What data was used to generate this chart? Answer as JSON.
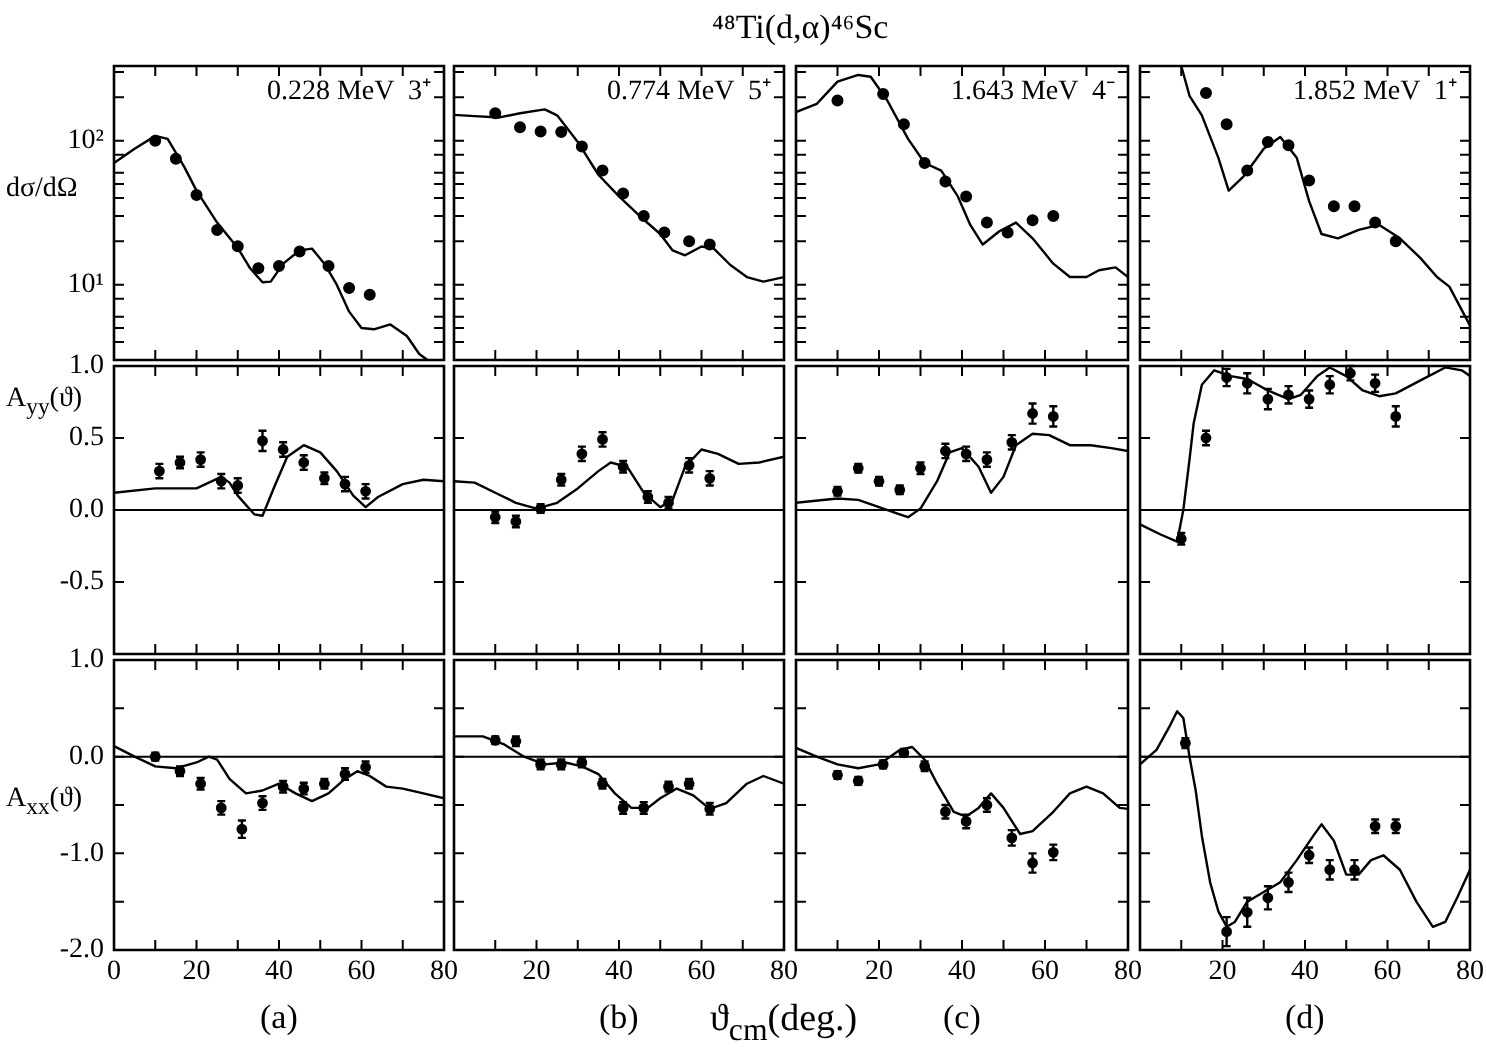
{
  "chart_data": [
    {
      "type": "line",
      "ylabel": "dσ/dΩ",
      "annotations": [
        "0.228 MeV  3⁺"
      ],
      "log": true,
      "tick_labels": "y",
      "xlim": [
        0,
        80
      ],
      "xticks": [
        {
          "value": 0,
          "label": null
        },
        {
          "value": 10,
          "label": null
        },
        {
          "value": 20,
          "label": null
        },
        {
          "value": 30,
          "label": null
        },
        {
          "value": 40,
          "label": null
        },
        {
          "value": 50,
          "label": null
        },
        {
          "value": 60,
          "label": null
        },
        {
          "value": 70,
          "label": null
        },
        {
          "value": 80,
          "label": null
        }
      ],
      "ylim": [
        3,
        330
      ],
      "yticks": [
        {
          "value": 4,
          "label": null
        },
        {
          "value": 5,
          "label": null
        },
        {
          "value": 6,
          "label": null
        },
        {
          "value": 8,
          "label": null
        },
        {
          "value": 10,
          "label": "10¹"
        },
        {
          "value": 20,
          "label": null
        },
        {
          "value": 30,
          "label": null
        },
        {
          "value": 40,
          "label": null
        },
        {
          "value": 50,
          "label": null
        },
        {
          "value": 60,
          "label": null
        },
        {
          "value": 80,
          "label": null
        },
        {
          "value": 100,
          "label": "10²"
        },
        {
          "value": 200,
          "label": null
        },
        {
          "value": 300,
          "label": null
        }
      ],
      "series": [
        {
          "type": "line",
          "color": "#000000",
          "marker": "none",
          "x": [
            0,
            5,
            10,
            13,
            17,
            20,
            25,
            30,
            33,
            36,
            38,
            41,
            45,
            48,
            51,
            54,
            57,
            60,
            63,
            67,
            71,
            74,
            76
          ],
          "values": [
            70,
            88,
            108,
            103,
            66,
            45,
            27,
            18,
            13,
            10.4,
            10.5,
            14,
            17.3,
            17.8,
            14,
            10,
            6.5,
            5.0,
            4.9,
            5.3,
            4.4,
            3.3,
            3.0
          ]
        },
        {
          "type": "scatter",
          "color": "#000000",
          "marker": "circle",
          "x": [
            10,
            15,
            20,
            25,
            30,
            35,
            40,
            45,
            52,
            57,
            62
          ],
          "values": [
            100,
            75,
            42,
            24,
            18.5,
            13,
            13.5,
            17,
            13.5,
            9.5,
            8.5
          ]
        }
      ]
    },
    {
      "type": "line",
      "annotations": [
        "0.774 MeV  5⁺"
      ],
      "log": true,
      "tick_labels": false,
      "xlim": [
        0,
        80
      ],
      "xticks": [
        {
          "value": 0,
          "label": null
        },
        {
          "value": 10,
          "label": null
        },
        {
          "value": 20,
          "label": null
        },
        {
          "value": 30,
          "label": null
        },
        {
          "value": 40,
          "label": null
        },
        {
          "value": 50,
          "label": null
        },
        {
          "value": 60,
          "label": null
        },
        {
          "value": 70,
          "label": null
        },
        {
          "value": 80,
          "label": null
        }
      ],
      "ylim": [
        3,
        330
      ],
      "yticks": [
        {
          "value": 4,
          "label": null
        },
        {
          "value": 5,
          "label": null
        },
        {
          "value": 6,
          "label": null
        },
        {
          "value": 8,
          "label": null
        },
        {
          "value": 10,
          "label": null
        },
        {
          "value": 20,
          "label": null
        },
        {
          "value": 30,
          "label": null
        },
        {
          "value": 40,
          "label": null
        },
        {
          "value": 50,
          "label": null
        },
        {
          "value": 60,
          "label": null
        },
        {
          "value": 80,
          "label": null
        },
        {
          "value": 100,
          "label": null
        },
        {
          "value": 200,
          "label": null
        },
        {
          "value": 300,
          "label": null
        }
      ],
      "series": [
        {
          "type": "line",
          "color": "#000000",
          "marker": "none",
          "x": [
            0,
            5,
            11,
            16,
            22,
            25,
            30,
            35,
            40,
            45,
            50,
            53,
            56,
            60,
            63,
            67,
            71,
            75,
            80
          ],
          "values": [
            151,
            148,
            145,
            155,
            165,
            150,
            98,
            58,
            41,
            30,
            22.5,
            17.3,
            16,
            18.4,
            17.8,
            13.7,
            11.3,
            10.5,
            11.3
          ]
        },
        {
          "type": "scatter",
          "color": "#000000",
          "marker": "circle",
          "x": [
            10,
            16,
            21,
            26,
            31,
            36,
            41,
            46,
            51,
            57,
            62
          ],
          "values": [
            155,
            124,
            116,
            115,
            91,
            62,
            43,
            30,
            23,
            20,
            19
          ]
        }
      ]
    },
    {
      "type": "line",
      "title": "⁴⁸Ti(d,α)⁴⁶Sc",
      "annotations": [
        "1.643 MeV  4⁻"
      ],
      "log": true,
      "tick_labels": false,
      "xlim": [
        0,
        80
      ],
      "xticks": [
        {
          "value": 0,
          "label": null
        },
        {
          "value": 10,
          "label": null
        },
        {
          "value": 20,
          "label": null
        },
        {
          "value": 30,
          "label": null
        },
        {
          "value": 40,
          "label": null
        },
        {
          "value": 50,
          "label": null
        },
        {
          "value": 60,
          "label": null
        },
        {
          "value": 70,
          "label": null
        },
        {
          "value": 80,
          "label": null
        }
      ],
      "ylim": [
        3,
        330
      ],
      "yticks": [
        {
          "value": 4,
          "label": null
        },
        {
          "value": 5,
          "label": null
        },
        {
          "value": 6,
          "label": null
        },
        {
          "value": 8,
          "label": null
        },
        {
          "value": 10,
          "label": null
        },
        {
          "value": 20,
          "label": null
        },
        {
          "value": 30,
          "label": null
        },
        {
          "value": 40,
          "label": null
        },
        {
          "value": 50,
          "label": null
        },
        {
          "value": 60,
          "label": null
        },
        {
          "value": 80,
          "label": null
        },
        {
          "value": 100,
          "label": null
        },
        {
          "value": 200,
          "label": null
        },
        {
          "value": 300,
          "label": null
        }
      ],
      "series": [
        {
          "type": "line",
          "color": "#000000",
          "marker": "none",
          "x": [
            0,
            5,
            10,
            15,
            18,
            22,
            27,
            31,
            35,
            39,
            42,
            45,
            49,
            53,
            57,
            62,
            66,
            70,
            73,
            77,
            80
          ],
          "values": [
            158,
            180,
            257,
            286,
            278,
            190,
            103,
            70,
            62,
            41,
            26,
            19,
            23.5,
            27,
            21,
            14,
            11.3,
            11.3,
            12.6,
            13.2,
            11.3
          ]
        },
        {
          "type": "scatter",
          "color": "#000000",
          "marker": "circle",
          "x": [
            10,
            21,
            26,
            31,
            36,
            41,
            46,
            51,
            57,
            62
          ],
          "values": [
            190,
            211,
            130,
            70,
            52,
            41,
            27,
            23,
            28,
            30
          ]
        }
      ]
    },
    {
      "type": "line",
      "annotations": [
        "1.852 MeV  1⁺"
      ],
      "log": true,
      "tick_labels": false,
      "xlim": [
        0,
        80
      ],
      "xticks": [
        {
          "value": 0,
          "label": null
        },
        {
          "value": 10,
          "label": null
        },
        {
          "value": 20,
          "label": null
        },
        {
          "value": 30,
          "label": null
        },
        {
          "value": 40,
          "label": null
        },
        {
          "value": 50,
          "label": null
        },
        {
          "value": 60,
          "label": null
        },
        {
          "value": 70,
          "label": null
        },
        {
          "value": 80,
          "label": null
        }
      ],
      "ylim": [
        3,
        330
      ],
      "yticks": [
        {
          "value": 4,
          "label": null
        },
        {
          "value": 5,
          "label": null
        },
        {
          "value": 6,
          "label": null
        },
        {
          "value": 8,
          "label": null
        },
        {
          "value": 10,
          "label": null
        },
        {
          "value": 20,
          "label": null
        },
        {
          "value": 30,
          "label": null
        },
        {
          "value": 40,
          "label": null
        },
        {
          "value": 50,
          "label": null
        },
        {
          "value": 60,
          "label": null
        },
        {
          "value": 80,
          "label": null
        },
        {
          "value": 100,
          "label": null
        },
        {
          "value": 200,
          "label": null
        },
        {
          "value": 300,
          "label": null
        }
      ],
      "series": [
        {
          "type": "line",
          "color": "#000000",
          "marker": "none",
          "x": [
            10,
            12,
            15,
            19,
            21.5,
            25,
            30,
            34,
            38,
            41,
            44,
            48,
            53,
            58,
            63,
            68,
            72,
            75,
            80
          ],
          "values": [
            330,
            205,
            150,
            76,
            45,
            56,
            88,
            106,
            76,
            38,
            22.5,
            21,
            24,
            26,
            21,
            15.3,
            11.3,
            9.7,
            5.2
          ]
        },
        {
          "type": "scatter",
          "color": "#000000",
          "marker": "circle",
          "x": [
            16,
            21,
            26,
            31,
            36,
            41,
            47,
            52,
            57,
            62
          ],
          "values": [
            214,
            130,
            62,
            98,
            93,
            53,
            35,
            35,
            27,
            20
          ]
        }
      ]
    },
    {
      "type": "line",
      "ylabel": "A$_{yy}$(ϑ)",
      "tick_labels": "y",
      "xlim": [
        0,
        80
      ],
      "xticks": [
        {
          "value": 0,
          "label": null
        },
        {
          "value": 10,
          "label": null
        },
        {
          "value": 20,
          "label": null
        },
        {
          "value": 30,
          "label": null
        },
        {
          "value": 40,
          "label": null
        },
        {
          "value": 50,
          "label": null
        },
        {
          "value": 60,
          "label": null
        },
        {
          "value": 70,
          "label": null
        },
        {
          "value": 80,
          "label": null
        }
      ],
      "ylim": [
        -1,
        1
      ],
      "yticks": [
        {
          "value": -1,
          "label": null
        },
        {
          "value": -0.5,
          "label": "-0.5"
        },
        {
          "value": 0,
          "label": "0.0"
        },
        {
          "value": 0.5,
          "label": "0.5"
        },
        {
          "value": 1,
          "label": "1.0"
        }
      ],
      "ref_lines": [
        {
          "axis": "y",
          "value": 0
        }
      ],
      "series": [
        {
          "type": "line",
          "color": "#000000",
          "marker": "none",
          "x": [
            0,
            10,
            20,
            23,
            26,
            28,
            30,
            34,
            36,
            39,
            42,
            46,
            50,
            54,
            58,
            61,
            64,
            70,
            75,
            80
          ],
          "values": [
            0.12,
            0.15,
            0.15,
            0.19,
            0.23,
            0.19,
            0.1,
            -0.03,
            -0.04,
            0.17,
            0.37,
            0.45,
            0.4,
            0.27,
            0.1,
            0.02,
            0.09,
            0.18,
            0.21,
            0.2
          ]
        },
        {
          "type": "scatter",
          "color": "#000000",
          "marker": "circle",
          "x": [
            11,
            16,
            21,
            26,
            30,
            36,
            41,
            46,
            51,
            56,
            61
          ],
          "values": [
            0.27,
            0.33,
            0.35,
            0.2,
            0.17,
            0.48,
            0.42,
            0.33,
            0.22,
            0.18,
            0.13
          ],
          "errors": [
            0.05,
            0.04,
            0.05,
            0.05,
            0.05,
            0.07,
            0.05,
            0.05,
            0.04,
            0.05,
            0.05
          ]
        }
      ]
    },
    {
      "type": "line",
      "tick_labels": false,
      "xlim": [
        0,
        80
      ],
      "xticks": [
        {
          "value": 0,
          "label": null
        },
        {
          "value": 10,
          "label": null
        },
        {
          "value": 20,
          "label": null
        },
        {
          "value": 30,
          "label": null
        },
        {
          "value": 40,
          "label": null
        },
        {
          "value": 50,
          "label": null
        },
        {
          "value": 60,
          "label": null
        },
        {
          "value": 70,
          "label": null
        },
        {
          "value": 80,
          "label": null
        }
      ],
      "ylim": [
        -1,
        1
      ],
      "yticks": [
        {
          "value": -1,
          "label": null
        },
        {
          "value": -0.5,
          "label": null
        },
        {
          "value": 0,
          "label": null
        },
        {
          "value": 0.5,
          "label": null
        },
        {
          "value": 1,
          "label": null
        }
      ],
      "ref_lines": [
        {
          "axis": "y",
          "value": 0
        }
      ],
      "series": [
        {
          "type": "line",
          "color": "#000000",
          "marker": "none",
          "x": [
            0,
            5,
            10,
            15,
            20,
            25,
            30,
            35,
            38,
            42,
            46,
            50,
            53,
            56,
            60,
            64,
            69,
            74,
            80
          ],
          "values": [
            0.2,
            0.19,
            0.12,
            0.05,
            0.01,
            0.05,
            0.15,
            0.27,
            0.33,
            0.3,
            0.12,
            0.02,
            0.07,
            0.3,
            0.42,
            0.39,
            0.32,
            0.33,
            0.37
          ]
        },
        {
          "type": "scatter",
          "color": "#000000",
          "marker": "circle",
          "x": [
            10,
            15,
            21,
            26,
            31,
            36,
            41,
            47,
            52,
            57,
            62
          ],
          "values": [
            -0.05,
            -0.08,
            0.01,
            0.21,
            0.39,
            0.49,
            0.3,
            0.09,
            0.05,
            0.31,
            0.22
          ],
          "errors": [
            0.04,
            0.04,
            0.03,
            0.04,
            0.05,
            0.05,
            0.04,
            0.04,
            0.04,
            0.05,
            0.05
          ]
        }
      ]
    },
    {
      "type": "line",
      "tick_labels": false,
      "xlim": [
        0,
        80
      ],
      "xticks": [
        {
          "value": 0,
          "label": null
        },
        {
          "value": 10,
          "label": null
        },
        {
          "value": 20,
          "label": null
        },
        {
          "value": 30,
          "label": null
        },
        {
          "value": 40,
          "label": null
        },
        {
          "value": 50,
          "label": null
        },
        {
          "value": 60,
          "label": null
        },
        {
          "value": 70,
          "label": null
        },
        {
          "value": 80,
          "label": null
        }
      ],
      "ylim": [
        -1,
        1
      ],
      "yticks": [
        {
          "value": -1,
          "label": null
        },
        {
          "value": -0.5,
          "label": null
        },
        {
          "value": 0,
          "label": null
        },
        {
          "value": 0.5,
          "label": null
        },
        {
          "value": 1,
          "label": null
        }
      ],
      "ref_lines": [
        {
          "axis": "y",
          "value": 0
        }
      ],
      "series": [
        {
          "type": "line",
          "color": "#000000",
          "marker": "none",
          "x": [
            0,
            10,
            15,
            20,
            25,
            27,
            30,
            34,
            37,
            40,
            44,
            47,
            50,
            53,
            57,
            61,
            66,
            71,
            76,
            80
          ],
          "values": [
            0.05,
            0.08,
            0.07,
            0.02,
            -0.03,
            -0.05,
            0.01,
            0.2,
            0.4,
            0.43,
            0.3,
            0.12,
            0.23,
            0.45,
            0.53,
            0.52,
            0.45,
            0.45,
            0.43,
            0.41
          ]
        },
        {
          "type": "scatter",
          "color": "#000000",
          "marker": "circle",
          "x": [
            10,
            15,
            20,
            25,
            30,
            36,
            41,
            46,
            52,
            57,
            62
          ],
          "values": [
            0.13,
            0.29,
            0.2,
            0.14,
            0.29,
            0.41,
            0.39,
            0.35,
            0.47,
            0.67,
            0.65
          ],
          "errors": [
            0.03,
            0.03,
            0.03,
            0.03,
            0.04,
            0.05,
            0.05,
            0.05,
            0.05,
            0.07,
            0.07
          ]
        }
      ]
    },
    {
      "type": "line",
      "tick_labels": false,
      "xlim": [
        0,
        80
      ],
      "xticks": [
        {
          "value": 0,
          "label": null
        },
        {
          "value": 10,
          "label": null
        },
        {
          "value": 20,
          "label": null
        },
        {
          "value": 30,
          "label": null
        },
        {
          "value": 40,
          "label": null
        },
        {
          "value": 50,
          "label": null
        },
        {
          "value": 60,
          "label": null
        },
        {
          "value": 70,
          "label": null
        },
        {
          "value": 80,
          "label": null
        }
      ],
      "ylim": [
        -1,
        1
      ],
      "yticks": [
        {
          "value": -1,
          "label": null
        },
        {
          "value": -0.5,
          "label": null
        },
        {
          "value": 0,
          "label": null
        },
        {
          "value": 0.5,
          "label": null
        },
        {
          "value": 1,
          "label": null
        }
      ],
      "ref_lines": [
        {
          "axis": "y",
          "value": 0
        }
      ],
      "series": [
        {
          "type": "line",
          "color": "#000000",
          "marker": "none",
          "x": [
            0,
            5,
            9,
            10.5,
            12,
            13,
            15,
            18,
            22,
            26,
            31,
            36,
            39,
            43,
            46,
            50,
            54,
            58,
            62,
            68,
            74,
            78,
            80
          ],
          "values": [
            -0.1,
            -0.17,
            -0.22,
            0.0,
            0.35,
            0.6,
            0.87,
            0.97,
            0.93,
            0.91,
            0.83,
            0.77,
            0.8,
            0.93,
            0.99,
            0.93,
            0.83,
            0.79,
            0.81,
            0.9,
            0.99,
            0.97,
            0.93
          ]
        },
        {
          "type": "scatter",
          "color": "#000000",
          "marker": "circle",
          "x": [
            10,
            16,
            21,
            26,
            31,
            36,
            41,
            46,
            51,
            57,
            62
          ],
          "values": [
            -0.2,
            0.5,
            0.92,
            0.88,
            0.77,
            0.8,
            0.77,
            0.87,
            0.95,
            0.88,
            0.65
          ],
          "errors": [
            0.04,
            0.05,
            0.06,
            0.07,
            0.07,
            0.06,
            0.06,
            0.06,
            0.05,
            0.06,
            0.07
          ]
        }
      ]
    },
    {
      "type": "line",
      "ylabel": "A$_{xx}$(ϑ)",
      "annotations": [
        "(a)"
      ],
      "xlim": [
        0,
        80
      ],
      "xticks": [
        0,
        {
          "value": 10,
          "label": null
        },
        20,
        {
          "value": 30,
          "label": null
        },
        40,
        {
          "value": 50,
          "label": null
        },
        60,
        {
          "value": 70,
          "label": null
        },
        80
      ],
      "ylim": [
        -2,
        1
      ],
      "yticks": [
        {
          "value": -2,
          "label": "-2.0"
        },
        {
          "value": -1.5,
          "label": null
        },
        {
          "value": -1,
          "label": "-1.0"
        },
        {
          "value": -0.5,
          "label": null
        },
        {
          "value": 0,
          "label": "0.0"
        },
        {
          "value": 0.5,
          "label": null
        },
        {
          "value": 1,
          "label": "1.0"
        }
      ],
      "ref_lines": [
        {
          "axis": "y",
          "value": 0
        }
      ],
      "series": [
        {
          "type": "line",
          "color": "#000000",
          "marker": "none",
          "x": [
            0,
            5,
            10,
            15,
            20,
            23,
            25,
            28,
            32,
            36,
            40,
            44,
            48,
            52,
            56,
            59,
            62,
            66,
            70,
            75,
            80
          ],
          "values": [
            0.11,
            0,
            -0.1,
            -0.12,
            -0.06,
            0,
            -0.03,
            -0.23,
            -0.38,
            -0.35,
            -0.28,
            -0.38,
            -0.46,
            -0.38,
            -0.23,
            -0.15,
            -0.2,
            -0.31,
            -0.33,
            -0.38,
            -0.43
          ]
        },
        {
          "type": "scatter",
          "color": "#000000",
          "marker": "circle",
          "x": [
            10,
            16,
            21,
            26,
            31,
            36,
            41,
            46,
            51,
            56,
            61
          ],
          "values": [
            0.0,
            -0.15,
            -0.28,
            -0.53,
            -0.75,
            -0.48,
            -0.31,
            -0.33,
            -0.28,
            -0.18,
            -0.11
          ],
          "errors": [
            0.04,
            0.05,
            0.06,
            0.07,
            0.09,
            0.07,
            0.06,
            0.06,
            0.05,
            0.06,
            0.06
          ]
        }
      ]
    },
    {
      "type": "line",
      "xlabel": "ϑ$_{cm}$(deg.)",
      "annotations": [
        "(b)"
      ],
      "tick_labels": "x",
      "xlim": [
        0,
        80
      ],
      "xticks": [
        {
          "value": 0,
          "label": null
        },
        {
          "value": 10,
          "label": null
        },
        20,
        {
          "value": 30,
          "label": null
        },
        40,
        {
          "value": 50,
          "label": null
        },
        60,
        {
          "value": 70,
          "label": null
        },
        80
      ],
      "ylim": [
        -2,
        1
      ],
      "yticks": [
        {
          "value": -2,
          "label": null
        },
        {
          "value": -1.5,
          "label": null
        },
        {
          "value": -1,
          "label": null
        },
        {
          "value": -0.5,
          "label": null
        },
        {
          "value": 0,
          "label": null
        },
        {
          "value": 0.5,
          "label": null
        },
        {
          "value": 1,
          "label": null
        }
      ],
      "ref_lines": [
        {
          "axis": "y",
          "value": 0
        }
      ],
      "series": [
        {
          "type": "line",
          "color": "#000000",
          "marker": "none",
          "x": [
            0,
            7,
            12,
            17,
            22,
            27,
            31,
            35,
            39,
            43,
            47,
            50,
            54,
            58,
            62,
            66,
            71,
            75,
            80
          ],
          "values": [
            0.21,
            0.21,
            0.13,
            0.0,
            -0.08,
            -0.06,
            -0.1,
            -0.18,
            -0.38,
            -0.53,
            -0.53,
            -0.43,
            -0.33,
            -0.4,
            -0.54,
            -0.48,
            -0.28,
            -0.2,
            -0.28
          ]
        },
        {
          "type": "scatter",
          "color": "#000000",
          "marker": "circle",
          "x": [
            10,
            15,
            21,
            26,
            31,
            36,
            41,
            46,
            52,
            57,
            62
          ],
          "values": [
            0.17,
            0.16,
            -0.08,
            -0.08,
            -0.06,
            -0.28,
            -0.53,
            -0.53,
            -0.31,
            -0.28,
            -0.54
          ],
          "errors": [
            0.04,
            0.05,
            0.05,
            0.05,
            0.05,
            0.05,
            0.06,
            0.06,
            0.05,
            0.05,
            0.06
          ]
        }
      ]
    },
    {
      "type": "line",
      "annotations": [
        "(c)"
      ],
      "tick_labels": "x",
      "xlim": [
        0,
        80
      ],
      "xticks": [
        {
          "value": 0,
          "label": null
        },
        {
          "value": 10,
          "label": null
        },
        20,
        {
          "value": 30,
          "label": null
        },
        40,
        {
          "value": 50,
          "label": null
        },
        60,
        {
          "value": 70,
          "label": null
        },
        80
      ],
      "ylim": [
        -2,
        1
      ],
      "yticks": [
        {
          "value": -2,
          "label": null
        },
        {
          "value": -1.5,
          "label": null
        },
        {
          "value": -1,
          "label": null
        },
        {
          "value": -0.5,
          "label": null
        },
        {
          "value": 0,
          "label": null
        },
        {
          "value": 0.5,
          "label": null
        },
        {
          "value": 1,
          "label": null
        }
      ],
      "ref_lines": [
        {
          "axis": "y",
          "value": 0
        }
      ],
      "series": [
        {
          "type": "line",
          "color": "#000000",
          "marker": "none",
          "x": [
            0,
            5,
            10,
            15,
            20,
            25,
            28,
            31,
            34,
            38,
            41,
            44,
            47,
            50,
            54,
            57,
            62,
            66,
            70,
            74,
            78,
            80
          ],
          "values": [
            0.09,
            0,
            -0.08,
            -0.12,
            -0.08,
            0.07,
            0.1,
            -0.03,
            -0.28,
            -0.57,
            -0.62,
            -0.53,
            -0.38,
            -0.53,
            -0.8,
            -0.77,
            -0.57,
            -0.38,
            -0.31,
            -0.38,
            -0.53,
            -0.54
          ]
        },
        {
          "type": "scatter",
          "color": "#000000",
          "marker": "circle",
          "x": [
            10,
            15,
            21,
            26,
            31,
            36,
            41,
            46,
            52,
            57,
            62
          ],
          "values": [
            -0.19,
            -0.25,
            -0.08,
            0.04,
            -0.1,
            -0.57,
            -0.67,
            -0.5,
            -0.84,
            -1.1,
            -0.99
          ],
          "errors": [
            0.04,
            0.04,
            0.04,
            0.04,
            0.05,
            0.07,
            0.07,
            0.07,
            0.08,
            0.1,
            0.08
          ]
        }
      ]
    },
    {
      "type": "line",
      "annotations": [
        "(d)"
      ],
      "tick_labels": "x",
      "xlim": [
        0,
        80
      ],
      "xticks": [
        {
          "value": 0,
          "label": null
        },
        {
          "value": 10,
          "label": null
        },
        20,
        {
          "value": 30,
          "label": null
        },
        40,
        {
          "value": 50,
          "label": null
        },
        60,
        {
          "value": 70,
          "label": null
        },
        80
      ],
      "ylim": [
        -2,
        1
      ],
      "yticks": [
        {
          "value": -2,
          "label": null
        },
        {
          "value": -1.5,
          "label": null
        },
        {
          "value": -1,
          "label": null
        },
        {
          "value": -0.5,
          "label": null
        },
        {
          "value": 0,
          "label": null
        },
        {
          "value": 0.5,
          "label": null
        },
        {
          "value": 1,
          "label": null
        }
      ],
      "ref_lines": [
        {
          "axis": "y",
          "value": 0
        }
      ],
      "series": [
        {
          "type": "line",
          "color": "#000000",
          "marker": "none",
          "x": [
            0,
            4,
            7,
            9,
            10.5,
            12,
            13.5,
            15,
            17,
            19,
            21,
            23,
            26,
            30,
            34,
            38,
            42,
            44,
            47,
            50,
            53,
            56,
            59,
            63,
            67,
            71,
            74,
            77,
            80
          ],
          "values": [
            -0.08,
            0.07,
            0.3,
            0.47,
            0.4,
            0,
            -0.35,
            -0.82,
            -1.3,
            -1.6,
            -1.76,
            -1.71,
            -1.5,
            -1.4,
            -1.3,
            -1.07,
            -0.82,
            -0.7,
            -0.87,
            -1.22,
            -1.22,
            -1.07,
            -1.02,
            -1.17,
            -1.5,
            -1.76,
            -1.71,
            -1.45,
            -1.17
          ]
        },
        {
          "type": "scatter",
          "color": "#000000",
          "marker": "circle",
          "x": [
            11,
            21,
            26,
            31,
            36,
            41,
            46,
            52,
            57,
            62
          ],
          "values": [
            0.14,
            -1.81,
            -1.61,
            -1.46,
            -1.3,
            -1.02,
            -1.17,
            -1.17,
            -0.72,
            -0.72
          ],
          "errors": [
            0.05,
            0.15,
            0.15,
            0.12,
            0.1,
            0.08,
            0.1,
            0.1,
            0.07,
            0.07
          ]
        }
      ]
    }
  ]
}
